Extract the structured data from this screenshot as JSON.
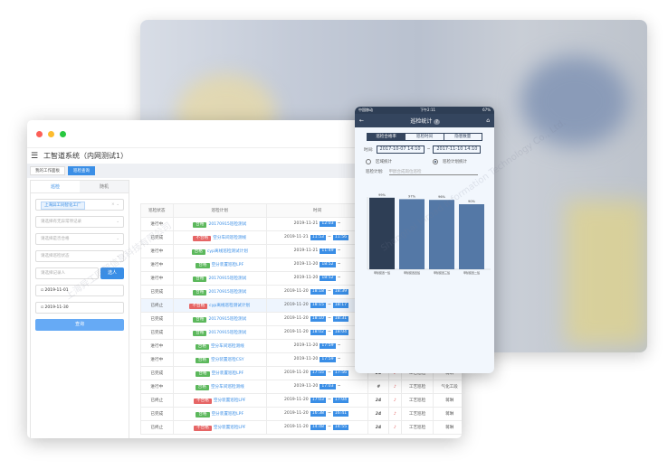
{
  "desktop": {
    "title": "工智道系统（内网测试1）",
    "tabs": [
      {
        "label": "我的工作面板"
      },
      {
        "label": "巡检查询"
      }
    ],
    "filter": {
      "tabs": [
        "巡检",
        "随机"
      ],
      "factory_chip": "上海异工同智化工厂",
      "placeholders": [
        "请选择有无异常项记录",
        "请选择是否合格",
        "请选择巡检状态",
        "请选择记录人"
      ],
      "select_button": "选人",
      "start_date": "2019-11-01",
      "end_date": "2019-11-30",
      "query_button": "查询"
    },
    "table": {
      "headers": [
        "巡检状态",
        "巡检计划",
        "时间",
        "填写",
        "",
        "",
        ""
      ],
      "rows": [
        {
          "status": "进行中",
          "result": "合格",
          "plan": "20170915巡检测试",
          "date": "2019-11-21",
          "start": "12:03",
          "end": "",
          "c4": "#",
          "c5": "",
          "c6": "",
          "c7": ""
        },
        {
          "status": "已完成",
          "result": "不合格",
          "plan": "空分车间巡检测线",
          "date": "2019-11-21",
          "start": "11:53",
          "end": "11:56",
          "c4": "#",
          "c5": "",
          "c6": "",
          "c7": ""
        },
        {
          "status": "进行中",
          "result": "合格",
          "plan": "cyp离线巡检测试计划",
          "date": "2019-11-21",
          "start": "11:49",
          "end": "",
          "c4": "#",
          "c5": "",
          "c6": "",
          "c7": ""
        },
        {
          "status": "进行中",
          "result": "合格",
          "plan": "空分装置巡检LPF",
          "date": "2019-11-20",
          "start": "18:52",
          "end": "",
          "c4": "#",
          "c5": "",
          "c6": "",
          "c7": ""
        },
        {
          "status": "进行中",
          "result": "合格",
          "plan": "20170915巡检测试",
          "date": "2019-11-20",
          "start": "18:52",
          "end": "",
          "c4": "#",
          "c5": "",
          "c6": "",
          "c7": ""
        },
        {
          "status": "已完成",
          "result": "合格",
          "plan": "20170915巡检测试",
          "date": "2019-11-20",
          "start": "18:18",
          "end": "18:39",
          "c4": "24",
          "c5": "",
          "c6": "",
          "c7": ""
        },
        {
          "status": "已终止",
          "result": "不合格",
          "plan": "cyp离线巡检测试计划",
          "date": "2019-11-20",
          "start": "18:15",
          "end": "18:17",
          "c4": "#",
          "c5": "",
          "c6": "",
          "c7": ""
        },
        {
          "status": "已完成",
          "result": "合格",
          "plan": "20170915巡检测试",
          "date": "2019-11-20",
          "start": "18:10",
          "end": "18:31",
          "c4": "24",
          "c5": "",
          "c6": "",
          "c7": ""
        },
        {
          "status": "已完成",
          "result": "合格",
          "plan": "20170915巡检测试",
          "date": "2019-11-20",
          "start": "18:02",
          "end": "18:04",
          "c4": "24",
          "c5": "",
          "c6": "",
          "c7": ""
        },
        {
          "status": "进行中",
          "result": "合格",
          "plan": "空分车间巡检测线",
          "date": "2019-11-20",
          "start": "17:59",
          "end": "",
          "c4": "#",
          "c5": "",
          "c6": "",
          "c7": ""
        },
        {
          "status": "进行中",
          "result": "合格",
          "plan": "空分装置巡检CSY",
          "date": "2019-11-20",
          "start": "17:59",
          "end": "",
          "c4": "#",
          "c5": "",
          "c6": "",
          "c7": ""
        },
        {
          "status": "已完成",
          "result": "合格",
          "plan": "空分装置巡检LPF",
          "date": "2019-11-20",
          "start": "17:55",
          "end": "17:56",
          "c4": "24",
          "c5": "♪",
          "c6": "工艺巡检",
          "c7": "蒋琳"
        },
        {
          "status": "进行中",
          "result": "合格",
          "plan": "空分车间巡检测线",
          "date": "2019-11-20",
          "start": "17:03",
          "end": "",
          "c4": "#",
          "c5": "♪",
          "c6": "工艺巡检",
          "c7": "气化工段"
        },
        {
          "status": "已终止",
          "result": "不合格",
          "plan": "空分装置巡检LPF",
          "date": "2019-11-20",
          "start": "17:03",
          "end": "17:04",
          "c4": "24",
          "c5": "♪",
          "c6": "工艺巡检",
          "c7": "蒋琳"
        },
        {
          "status": "已完成",
          "result": "合格",
          "plan": "空分装置巡检LPF",
          "date": "2019-11-20",
          "start": "16:38",
          "end": "16:41",
          "c4": "24",
          "c5": "♪",
          "c6": "工艺巡检",
          "c7": "蒋琳"
        },
        {
          "status": "已终止",
          "result": "不合格",
          "plan": "空分装置巡检LPF",
          "date": "2019-11-20",
          "start": "14:48",
          "end": "14:55",
          "c4": "24",
          "c5": "♪",
          "c6": "工艺巡检",
          "c7": "蒋琳"
        }
      ]
    }
  },
  "mobile": {
    "status_bar": {
      "carrier": "中国移动",
      "time": "下午2:11",
      "battery": "67%"
    },
    "title": "巡检统计",
    "help": "?",
    "segments": [
      "巡检合格率",
      "巡检时间",
      "隐患数量"
    ],
    "time_label": "时间:",
    "start": "2017-10-07 14:10",
    "end": "2017-11-10 14:10",
    "sep": "~",
    "radios": [
      "区域统计",
      "巡检计划统计"
    ],
    "plan_label": "巡检计划:",
    "plan_value": "甲醇合成岗位巡检",
    "chart_data": {
      "type": "bar",
      "categories": [
        "甲醇装置一班",
        "甲醇装置四班",
        "甲醇装置三班",
        "甲醇装置二班"
      ],
      "values": [
        99,
        97,
        96,
        90
      ],
      "value_labels": [
        "99%",
        "97%",
        "96%",
        "90%"
      ],
      "ylim": [
        0,
        100
      ],
      "colors": [
        "#2e3e55",
        "#5478a6",
        "#5478a6",
        "#5478a6"
      ]
    }
  },
  "colors": {
    "accent": "#3a8ee6",
    "pass": "#5cb85c",
    "fail": "#e66565",
    "mobile_nav": "#34455e"
  },
  "watermark": "上海异工同智信息科技有限公司 Shanghai Inroad Information Technology Co., Ltd."
}
